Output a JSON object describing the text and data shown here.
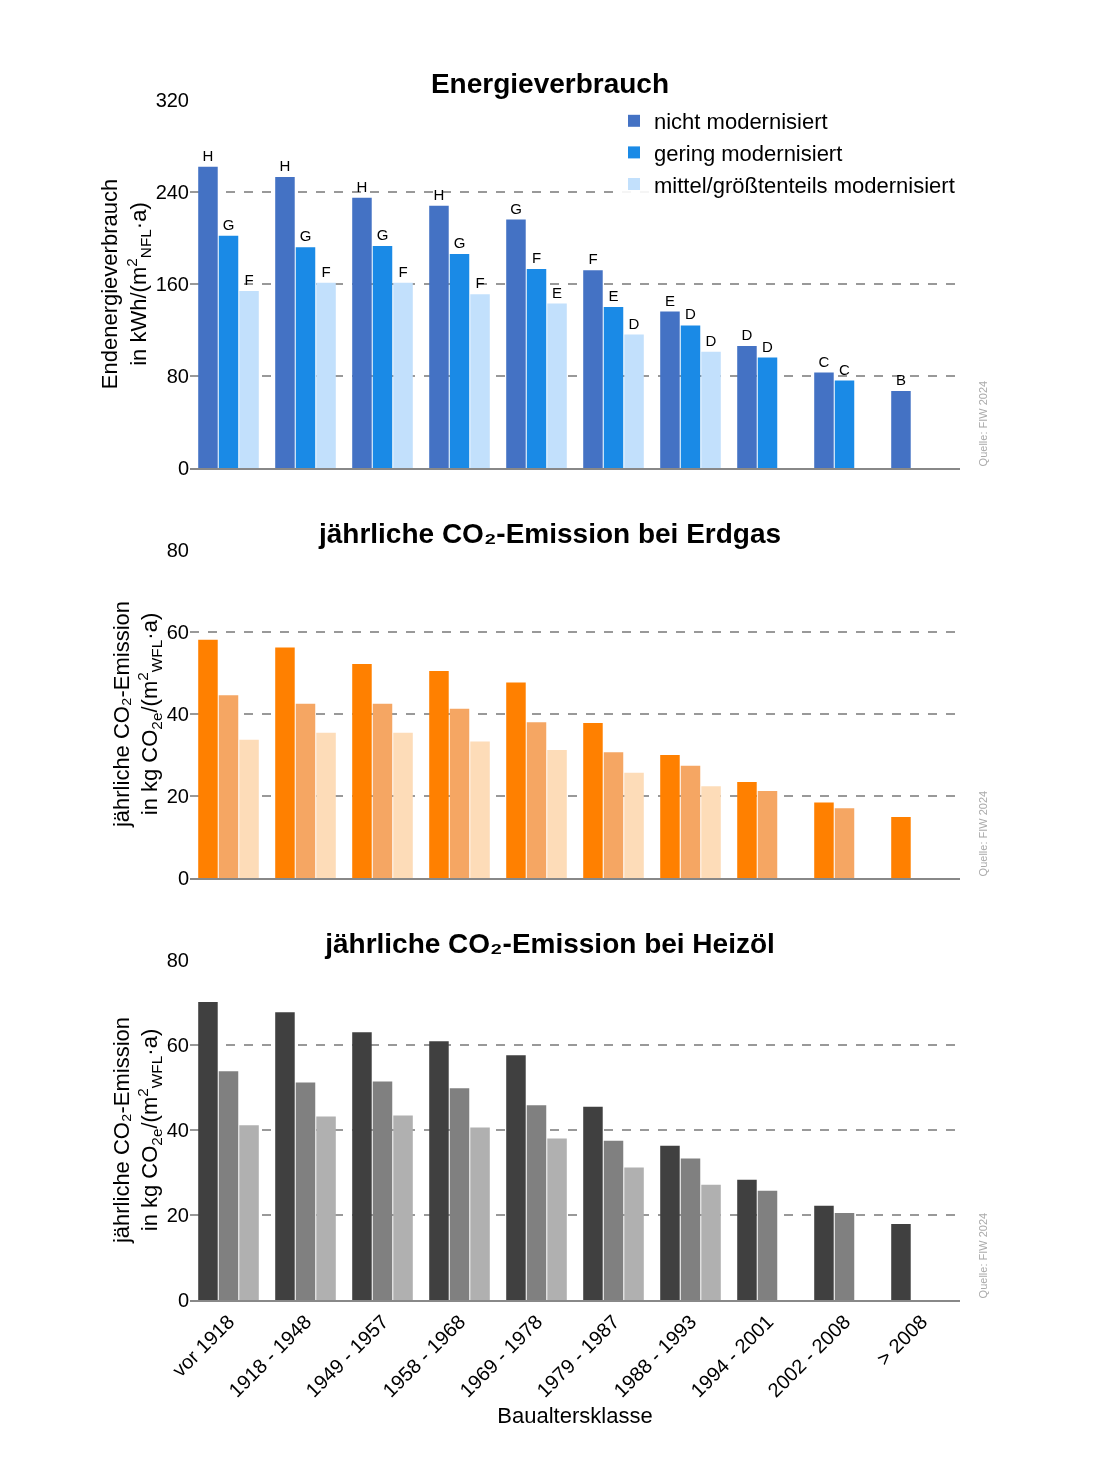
{
  "chart_data": [
    {
      "type": "bar",
      "title": "Energieverbrauch",
      "ylabel": "Endenergieverbrauch\nin kWh/(m$^{2}$$_{NFL}$·a)",
      "series": [
        {
          "name": "nicht modernisiert",
          "color": "#4472c4",
          "values": [
            262,
            253,
            235,
            228,
            216,
            172,
            136,
            106,
            83,
            67
          ],
          "value_labels": [
            "H",
            "H",
            "H",
            "H",
            "G",
            "F",
            "E",
            "D",
            "C",
            "B"
          ]
        },
        {
          "name": "gering modernisiert",
          "color": "#1a8ae6",
          "values": [
            202,
            192,
            193,
            186,
            173,
            140,
            124,
            96,
            76,
            null
          ],
          "value_labels": [
            "G",
            "G",
            "G",
            "G",
            "F",
            "E",
            "D",
            "D",
            "C",
            null
          ]
        },
        {
          "name": "mittel/größtenteils modernisiert",
          "color": "#c2e0fc",
          "values": [
            154,
            161,
            161,
            151,
            143,
            116,
            101,
            null,
            null,
            null
          ],
          "value_labels": [
            "F",
            "F",
            "F",
            "F",
            "E",
            "D",
            "D",
            null,
            null,
            null
          ]
        }
      ],
      "ylim": [
        0,
        320
      ],
      "yticks": [
        0,
        80,
        160,
        240,
        320
      ],
      "grid": "y",
      "legend": "top right",
      "tick_labels": "y",
      "annotations": [
        "Quelle: FIW 2024"
      ]
    },
    {
      "type": "bar",
      "title": "jährliche CO₂-Emission bei Erdgas",
      "ylabel": "jährliche CO₂-Emission\nin kg CO$_{2e}$/(m$^{2}$$_{WFL}$·a)",
      "series": [
        {
          "color": "#ff8000",
          "values": [
            58.1,
            56.2,
            52.2,
            50.5,
            47.7,
            37.8,
            30.0,
            23.4,
            18.4,
            14.9
          ]
        },
        {
          "color": "#f5a663",
          "values": [
            44.6,
            42.5,
            42.5,
            41.3,
            38.0,
            30.7,
            27.4,
            21.2,
            17.0,
            null
          ]
        },
        {
          "color": "#fddcb8",
          "values": [
            33.7,
            35.4,
            35.4,
            33.3,
            31.2,
            25.7,
            22.4,
            null,
            null,
            null
          ]
        }
      ],
      "ylim": [
        0,
        80
      ],
      "yticks": [
        0,
        20,
        40,
        60,
        80
      ],
      "grid": "y",
      "tick_labels": "y",
      "annotations": [
        "Quelle: FIW 2024"
      ]
    },
    {
      "type": "bar",
      "title": "jährliche CO₂-Emission bei Heizöl",
      "ylabel": "jährliche CO₂-Emission\nin kg CO$_{2e}$/(m$^{2}$$_{WFL}$·a)",
      "xlabel": "Baualtersklasse",
      "categories": [
        "vor 1918",
        "1918 - 1948",
        "1949 - 1957",
        "1958 - 1968",
        "1969 - 1978",
        "1979 - 1987",
        "1988 - 1993",
        "1994 - 2001",
        "2002 - 2008",
        "> 2008"
      ],
      "series": [
        {
          "color": "#404040",
          "values": [
            70.1,
            67.7,
            63.0,
            60.9,
            57.6,
            45.5,
            36.3,
            28.3,
            22.2,
            17.9
          ]
        },
        {
          "color": "#808080",
          "values": [
            53.8,
            51.2,
            51.4,
            49.8,
            45.8,
            37.5,
            33.3,
            25.7,
            20.5,
            null
          ]
        },
        {
          "color": "#b0b0b0",
          "values": [
            41.1,
            43.2,
            43.4,
            40.6,
            38.0,
            31.2,
            27.1,
            null,
            null,
            null
          ]
        }
      ],
      "ylim": [
        0,
        80
      ],
      "yticks": [
        0,
        20,
        40,
        60,
        80
      ],
      "grid": "y",
      "annotations": [
        "Quelle: FIW 2024"
      ]
    }
  ]
}
